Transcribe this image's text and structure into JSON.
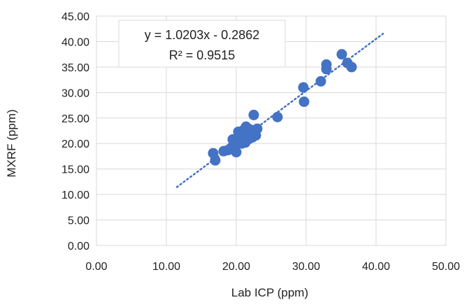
{
  "chart_data": {
    "type": "scatter",
    "xlabel": "Lab ICP (ppm)",
    "ylabel": "MXRF (ppm)",
    "xlim": [
      0,
      50
    ],
    "ylim": [
      0,
      45
    ],
    "x_ticks": [
      "0.00",
      "10.00",
      "20.00",
      "30.00",
      "40.00",
      "50.00"
    ],
    "y_ticks": [
      "0.00",
      "5.00",
      "10.00",
      "15.00",
      "20.00",
      "25.00",
      "30.00",
      "35.00",
      "40.00",
      "45.00"
    ],
    "grid": "vertical and horizontal",
    "marker_color": "#4472C4",
    "series": [
      {
        "points": [
          [
            16.7,
            18.1
          ],
          [
            17.0,
            16.7
          ],
          [
            18.2,
            18.5
          ],
          [
            18.8,
            18.7
          ],
          [
            19.3,
            19.2
          ],
          [
            19.5,
            20.8
          ],
          [
            19.6,
            19.6
          ],
          [
            19.8,
            18.9
          ],
          [
            20.0,
            18.3
          ],
          [
            20.1,
            19.9
          ],
          [
            20.2,
            20.6
          ],
          [
            20.3,
            21.2
          ],
          [
            20.3,
            22.3
          ],
          [
            20.5,
            20.3
          ],
          [
            20.6,
            21.6
          ],
          [
            20.8,
            20.0
          ],
          [
            20.9,
            21.9
          ],
          [
            21.0,
            22.6
          ],
          [
            21.1,
            21.0
          ],
          [
            21.3,
            20.2
          ],
          [
            21.4,
            23.3
          ],
          [
            21.5,
            22.1
          ],
          [
            21.6,
            21.5
          ],
          [
            21.8,
            20.9
          ],
          [
            21.9,
            22.8
          ],
          [
            22.0,
            21.8
          ],
          [
            22.2,
            22.4
          ],
          [
            22.3,
            21.2
          ],
          [
            22.5,
            25.6
          ],
          [
            22.6,
            22.0
          ],
          [
            22.8,
            21.6
          ],
          [
            23.0,
            22.9
          ],
          [
            25.9,
            25.2
          ],
          [
            29.6,
            31.0
          ],
          [
            29.7,
            28.2
          ],
          [
            32.1,
            32.2
          ],
          [
            32.9,
            35.5
          ],
          [
            32.9,
            34.6
          ],
          [
            35.1,
            37.5
          ],
          [
            35.9,
            35.8
          ],
          [
            36.5,
            35.0
          ]
        ]
      }
    ],
    "trendline": {
      "style": "dotted linear",
      "slope": 1.0203,
      "intercept": -0.2862,
      "x_range": [
        11.5,
        41.0
      ],
      "equation": "y = 1.0203x - 0.2862",
      "r_squared": "R² = 0.9515"
    }
  }
}
